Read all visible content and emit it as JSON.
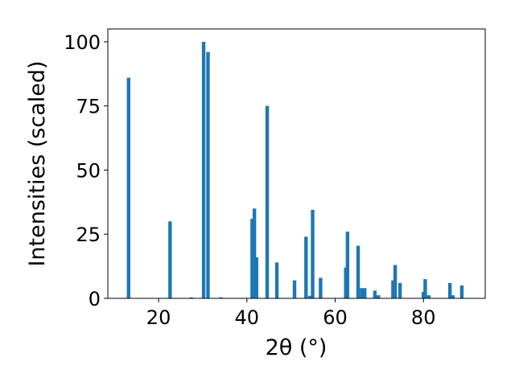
{
  "chart_data": {
    "type": "bar",
    "title": "",
    "xlabel": "2θ (°)",
    "ylabel": "Intensities (scaled)",
    "xlim": [
      8.5,
      94.0
    ],
    "ylim": [
      0,
      105
    ],
    "xticks": [
      20,
      40,
      60,
      80
    ],
    "yticks": [
      0,
      25,
      50,
      75,
      100
    ],
    "grid": false,
    "color": "#1f77b4",
    "bar_width": 0.8,
    "points": [
      {
        "x": 13.2,
        "y": 86
      },
      {
        "x": 22.6,
        "y": 30
      },
      {
        "x": 27.4,
        "y": 0.4
      },
      {
        "x": 30.2,
        "y": 100
      },
      {
        "x": 31.2,
        "y": 96
      },
      {
        "x": 34.1,
        "y": 0.4
      },
      {
        "x": 41.2,
        "y": 31
      },
      {
        "x": 41.7,
        "y": 35
      },
      {
        "x": 42.2,
        "y": 16
      },
      {
        "x": 44.6,
        "y": 75
      },
      {
        "x": 46.8,
        "y": 14
      },
      {
        "x": 50.8,
        "y": 7
      },
      {
        "x": 53.4,
        "y": 24
      },
      {
        "x": 54.3,
        "y": 1
      },
      {
        "x": 54.9,
        "y": 34.5
      },
      {
        "x": 56.7,
        "y": 8
      },
      {
        "x": 62.4,
        "y": 12
      },
      {
        "x": 62.8,
        "y": 26
      },
      {
        "x": 65.2,
        "y": 20.5
      },
      {
        "x": 66.0,
        "y": 4
      },
      {
        "x": 66.7,
        "y": 4
      },
      {
        "x": 69.0,
        "y": 3
      },
      {
        "x": 69.8,
        "y": 1.2
      },
      {
        "x": 73.1,
        "y": 7
      },
      {
        "x": 73.6,
        "y": 13
      },
      {
        "x": 74.7,
        "y": 6
      },
      {
        "x": 80.0,
        "y": 2.5
      },
      {
        "x": 80.4,
        "y": 7.5
      },
      {
        "x": 81.2,
        "y": 1.2
      },
      {
        "x": 86.0,
        "y": 6
      },
      {
        "x": 86.7,
        "y": 1.2
      },
      {
        "x": 88.7,
        "y": 5
      }
    ]
  }
}
